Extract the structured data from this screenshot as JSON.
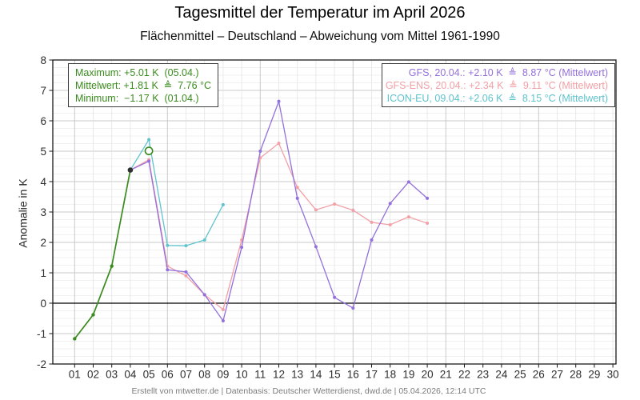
{
  "title": "Tagesmittel der Temperatur im April 2026",
  "subtitle": "Flächenmittel – Deutschland – Abweichung vom Mittel 1961-1990",
  "footer": "Erstellt von mtwetter.de | Datenbasis: Deutscher Wetterdienst, dwd.de | 05.04.2026, 12:14 UTC",
  "y_axis": {
    "label": "Anomalie in K",
    "ticks": [
      8,
      7,
      6,
      5,
      4,
      3,
      2,
      1,
      0,
      -1,
      -2
    ]
  },
  "x_axis": {
    "ticks": [
      "01",
      "02",
      "03",
      "04",
      "05",
      "06",
      "07",
      "08",
      "09",
      "10",
      "11",
      "12",
      "13",
      "14",
      "15",
      "16",
      "17",
      "18",
      "19",
      "20",
      "21",
      "22",
      "23",
      "24",
      "25",
      "26",
      "27",
      "28",
      "29",
      "30"
    ]
  },
  "stats_box": {
    "color": "#3a8b1e",
    "lines": [
      "Maximum: +5.01 K  (05.04.)",
      "Mittelwert: +1.81 K  ≜  7.76 °C",
      "Minimum:  −1.17 K  (01.04.)"
    ]
  },
  "forecast_box": {
    "lines": [
      {
        "label": "GFS, 20.04.: +2.10 K  ≜  8.87 °C (Mittelwert)",
        "color": "#9370db"
      },
      {
        "label": "GFS-ENS, 20.04.: +2.34 K  ≜  9.11 °C (Mittelwert)",
        "color": "#f2a0a6"
      },
      {
        "label": "ICON-EU, 09.04.: +2.06 K  ≜  8.15 °C (Mittelwert)",
        "color": "#5fc3ce"
      }
    ]
  },
  "chart_data": {
    "type": "line",
    "title": "Tagesmittel der Temperatur im April 2026",
    "xlabel": "",
    "ylabel": "Anomalie in K",
    "xlim": [
      1,
      30
    ],
    "ylim": [
      -2,
      8
    ],
    "grid": {
      "minor_y_step": 0.25,
      "major_y_step": 1,
      "x_major_every": 5,
      "zero_line": true
    },
    "series": [
      {
        "name": "Beobachtung",
        "color": "#3a8b1e",
        "line_width": 1.7,
        "marker_r": 2.2,
        "x": [
          1,
          2,
          3,
          4
        ],
        "values": [
          -1.17,
          -0.38,
          1.22,
          4.38
        ]
      },
      {
        "name": "ICON-EU",
        "color": "#5fc3ce",
        "line_width": 1.3,
        "marker_r": 2,
        "x": [
          4,
          5,
          6,
          7,
          8,
          9
        ],
        "values": [
          4.38,
          5.38,
          1.9,
          1.89,
          2.08,
          3.24
        ]
      },
      {
        "name": "GFS-ENS",
        "color": "#f2a0a6",
        "line_width": 1.3,
        "marker_r": 2,
        "x": [
          4,
          5,
          6,
          7,
          8,
          9,
          10,
          11,
          12,
          13,
          14,
          15,
          16,
          17,
          18,
          19,
          20
        ],
        "values": [
          4.38,
          4.72,
          1.22,
          0.9,
          0.28,
          -0.21,
          2.08,
          4.78,
          5.26,
          3.81,
          3.07,
          3.26,
          3.06,
          2.66,
          2.58,
          2.84,
          2.63
        ]
      },
      {
        "name": "GFS",
        "color": "#9370db",
        "line_width": 1.3,
        "marker_r": 2,
        "x": [
          4,
          5,
          6,
          7,
          8,
          9,
          10,
          11,
          12,
          13,
          14,
          15,
          16,
          17,
          18,
          19,
          20
        ],
        "values": [
          4.38,
          4.67,
          1.1,
          1.03,
          0.28,
          -0.58,
          1.84,
          5.0,
          6.64,
          3.45,
          1.86,
          0.19,
          -0.16,
          2.08,
          3.28,
          3.99,
          3.45
        ]
      }
    ],
    "special_markers": [
      {
        "type": "filled",
        "x": 4,
        "y": 4.38,
        "color": "#303030",
        "r": 3.3
      },
      {
        "type": "open",
        "x": 5,
        "y": 5.01,
        "color": "#3a8b1e",
        "r": 4.6
      }
    ]
  }
}
